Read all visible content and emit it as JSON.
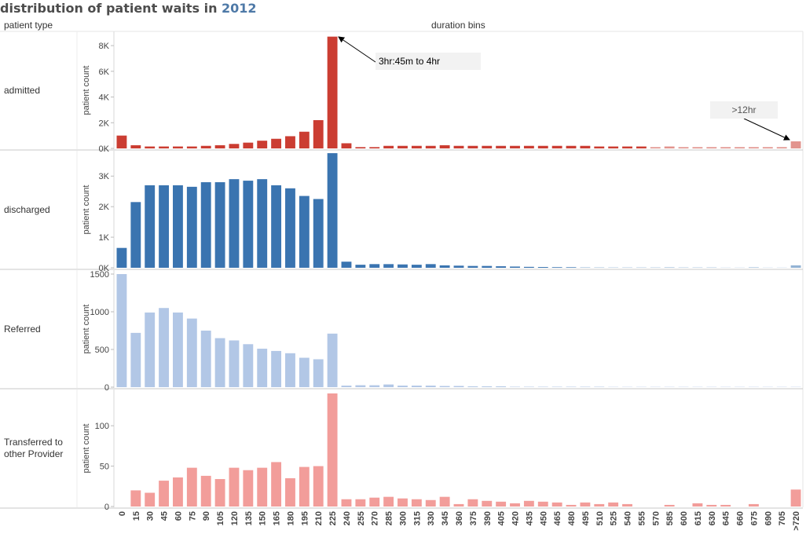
{
  "title": {
    "prefix": "distribution of patient waits in ",
    "year": "2012"
  },
  "headers": {
    "row_field": "patient type",
    "col_field": "duration bins"
  },
  "colors": {
    "admitted": "#cb3d32",
    "discharged": "#3a74b0",
    "Referred": "#b2c7e6",
    "Transferred to other Provider": "#f29d9a",
    "annotation_bg": "#f2f2f2"
  },
  "annotations": [
    {
      "text": "3hr:45m to 4hr",
      "panel": "admitted",
      "target_bin": "225"
    },
    {
      "text": ">12hr",
      "panel": "admitted",
      "target_bin": ">720"
    }
  ],
  "chart_data": {
    "type": "bar",
    "xlabel": "duration bins",
    "ylabel": "patient count",
    "categories": [
      "0",
      "15",
      "30",
      "45",
      "60",
      "75",
      "90",
      "105",
      "120",
      "135",
      "150",
      "165",
      "180",
      "195",
      "210",
      "225",
      "240",
      "255",
      "270",
      "285",
      "300",
      "315",
      "330",
      "345",
      "360",
      "375",
      "390",
      "405",
      "420",
      "435",
      "450",
      "465",
      "480",
      "495",
      "510",
      "525",
      "540",
      "555",
      "570",
      "585",
      "600",
      "615",
      "630",
      "645",
      "660",
      "675",
      "690",
      "705",
      ">720"
    ],
    "series": [
      {
        "name": "admitted",
        "label_lines": [
          "admitted"
        ],
        "ylabel": "patient count",
        "ylim": [
          0,
          8800
        ],
        "ticks": [
          0,
          2000,
          4000,
          6000,
          8000
        ],
        "tick_labels": [
          "0K",
          "2K",
          "4K",
          "6K",
          "8K"
        ],
        "light_from_index": 38,
        "values": [
          1000,
          250,
          150,
          150,
          150,
          150,
          200,
          250,
          350,
          450,
          600,
          750,
          950,
          1300,
          2200,
          8700,
          400,
          100,
          100,
          200,
          200,
          200,
          200,
          250,
          200,
          200,
          200,
          200,
          200,
          200,
          200,
          200,
          200,
          200,
          150,
          150,
          150,
          150,
          100,
          150,
          100,
          100,
          100,
          100,
          100,
          100,
          100,
          100,
          550
        ]
      },
      {
        "name": "discharged",
        "label_lines": [
          "discharged"
        ],
        "ylabel": "patient count",
        "ylim": [
          0,
          3700
        ],
        "ticks": [
          0,
          1000,
          2000,
          3000
        ],
        "tick_labels": [
          "0K",
          "1K",
          "2K",
          "3K"
        ],
        "light_from_index": 33,
        "values": [
          650,
          2150,
          2700,
          2700,
          2700,
          2650,
          2800,
          2800,
          2900,
          2850,
          2900,
          2700,
          2600,
          2350,
          2250,
          3750,
          200,
          100,
          120,
          120,
          110,
          100,
          120,
          80,
          70,
          60,
          60,
          50,
          40,
          30,
          25,
          20,
          18,
          15,
          12,
          10,
          10,
          10,
          10,
          15,
          10,
          10,
          10,
          5,
          5,
          15,
          5,
          5,
          80
        ]
      },
      {
        "name": "Referred",
        "label_lines": [
          "Referred"
        ],
        "ylabel": "patient count",
        "ylim": [
          0,
          1500
        ],
        "ticks": [
          0,
          500,
          1000,
          1500
        ],
        "tick_labels": [
          "0",
          "500",
          "1000",
          "1500"
        ],
        "light_from_index": 49,
        "values": [
          1500,
          720,
          990,
          1050,
          990,
          910,
          750,
          650,
          620,
          570,
          510,
          480,
          450,
          390,
          370,
          710,
          20,
          25,
          25,
          35,
          20,
          20,
          20,
          15,
          15,
          10,
          10,
          10,
          5,
          5,
          5,
          5,
          5,
          5,
          5,
          3,
          3,
          3,
          3,
          3,
          3,
          3,
          3,
          3,
          3,
          3,
          3,
          3,
          3
        ]
      },
      {
        "name": "Transferred to other Provider",
        "label_lines": [
          "Transferred to",
          "other Provider"
        ],
        "ylabel": "patient count",
        "ylim": [
          0,
          140
        ],
        "ticks": [
          0,
          50,
          100
        ],
        "tick_labels": [
          "0",
          "50",
          "100"
        ],
        "light_from_index": 49,
        "values": [
          0,
          20,
          17,
          32,
          36,
          48,
          38,
          34,
          48,
          45,
          48,
          55,
          35,
          49,
          50,
          140,
          9,
          9,
          11,
          12,
          10,
          9,
          8,
          12,
          3,
          9,
          7,
          6,
          4,
          7,
          6,
          5,
          2,
          5,
          3,
          5,
          3,
          0,
          0,
          2,
          0,
          4,
          2,
          2,
          0,
          3,
          0,
          0,
          21
        ]
      }
    ]
  }
}
